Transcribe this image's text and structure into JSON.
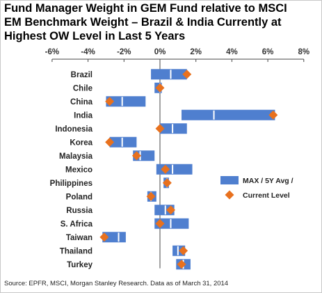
{
  "title_lines": [
    "Fund Manager Weight in GEM Fund relative to MSCI",
    "EM Benchmark Weight – Brazil & India Currently at",
    "Highest OW Level in Last 5 Years"
  ],
  "source": "Source: EPFR, MSCI, Morgan Stanley Research. Data as of March 31, 2014",
  "colors": {
    "bar": "#4f7fcf",
    "marker": "#e8711e",
    "divider": "#ffffff",
    "axis": "#444444"
  },
  "chart_data": {
    "type": "bar",
    "orientation": "horizontal-floating",
    "x_ticks": [
      "-6%",
      "-4%",
      "-2%",
      "0%",
      "2%",
      "4%",
      "6%",
      "8%"
    ],
    "xlim": [
      -6,
      8
    ],
    "grid": false,
    "legend_position": "right",
    "legend": [
      {
        "label": "MAX / 5Y Avg /",
        "symbol": "bar"
      },
      {
        "label": "Current Level",
        "symbol": "diamond"
      }
    ],
    "categories": [
      "Brazil",
      "Chile",
      "China",
      "India",
      "Indonesia",
      "Korea",
      "Malaysia",
      "Mexico",
      "Philippines",
      "Poland",
      "Russia",
      "S. Africa",
      "Taiwan",
      "Thailand",
      "Turkey"
    ],
    "series": [
      {
        "name": "MAX / 5Y Avg /",
        "role": "min",
        "values": [
          -0.5,
          -0.3,
          -3.0,
          1.2,
          0.0,
          -2.8,
          -1.5,
          -0.2,
          0.2,
          -0.7,
          -0.3,
          -0.3,
          -3.2,
          0.7,
          0.9
        ]
      },
      {
        "name": "MAX / 5Y Avg /",
        "role": "avg",
        "values": [
          0.6,
          0.0,
          -2.1,
          3.0,
          0.7,
          -2.1,
          -1.1,
          0.7,
          0.4,
          -0.5,
          0.3,
          0.6,
          -2.3,
          1.0,
          1.3
        ]
      },
      {
        "name": "MAX / 5Y Avg /",
        "role": "max",
        "values": [
          1.5,
          0.1,
          -0.8,
          6.4,
          1.5,
          -1.3,
          -0.3,
          1.8,
          0.5,
          -0.2,
          0.8,
          1.6,
          -1.9,
          1.4,
          1.7
        ]
      },
      {
        "name": "Current Level",
        "role": "current",
        "values": [
          1.5,
          0.0,
          -2.8,
          6.3,
          0.0,
          -2.8,
          -1.3,
          0.3,
          0.4,
          -0.5,
          0.6,
          0.0,
          -3.1,
          1.3,
          1.2
        ]
      }
    ]
  }
}
